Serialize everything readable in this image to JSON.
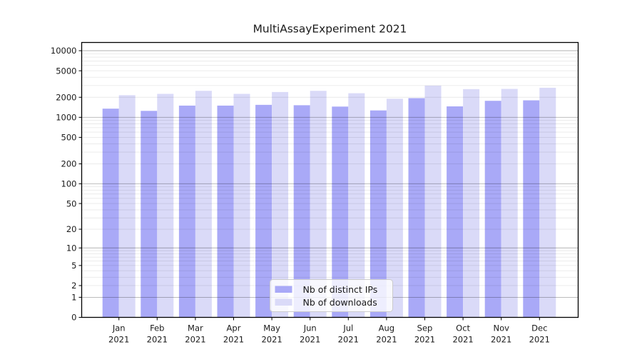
{
  "chart_data": {
    "type": "bar",
    "title": "MultiAssayExperiment 2021",
    "categories": [
      "Jan",
      "Feb",
      "Mar",
      "Apr",
      "May",
      "Jun",
      "Jul",
      "Aug",
      "Sep",
      "Oct",
      "Nov",
      "Dec"
    ],
    "category_year": "2021",
    "series": [
      {
        "name": "Nb of distinct IPs",
        "color": "#a9a9f7",
        "values": [
          1350,
          1250,
          1500,
          1500,
          1540,
          1520,
          1450,
          1270,
          1940,
          1460,
          1770,
          1800
        ]
      },
      {
        "name": "Nb of downloads",
        "color": "#dadaf8",
        "values": [
          2150,
          2250,
          2500,
          2250,
          2400,
          2500,
          2300,
          1900,
          2990,
          2650,
          2670,
          2780
        ]
      }
    ],
    "yscale": "log1p",
    "ylim": [
      0,
      10000
    ],
    "ytick_values": [
      0,
      1,
      2,
      5,
      10,
      20,
      50,
      100,
      200,
      500,
      1000,
      2000,
      5000,
      10000
    ],
    "grid": true,
    "legend_position": "lower center",
    "colors": {
      "axis": "#000000",
      "text": "#1a1a1a",
      "grid_line": "#000000",
      "legend_bg": "#ffffff",
      "legend_border": "#cccccc",
      "background": "#ffffff"
    }
  }
}
